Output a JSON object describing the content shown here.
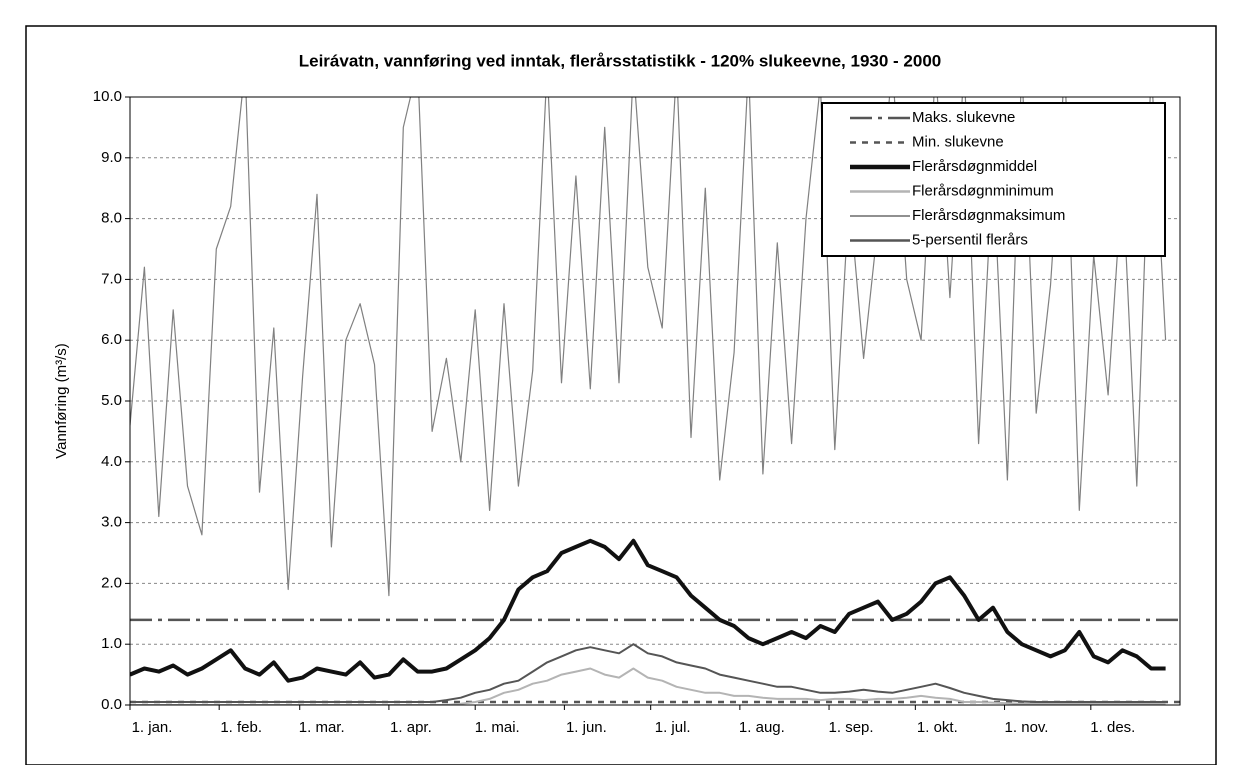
{
  "chart_data": {
    "type": "line",
    "title": "Leirávatn, vannføring ved inntak, flerårsstatistikk - 120% slukeevne, 1930 - 2000",
    "y_label": "Vannføring (m³/s)",
    "x": [
      1,
      6,
      11,
      16,
      21,
      26,
      31,
      36,
      41,
      46,
      51,
      56,
      61,
      66,
      71,
      76,
      81,
      86,
      91,
      96,
      101,
      106,
      111,
      116,
      121,
      126,
      131,
      136,
      141,
      146,
      151,
      156,
      161,
      166,
      171,
      176,
      181,
      186,
      191,
      196,
      201,
      206,
      211,
      216,
      221,
      226,
      231,
      236,
      241,
      246,
      251,
      256,
      261,
      266,
      271,
      276,
      281,
      286,
      291,
      296,
      301,
      306,
      311,
      316,
      321,
      326,
      331,
      336,
      341,
      346,
      351,
      356,
      361
    ],
    "xlim": [
      1,
      366
    ],
    "xticks": [
      {
        "value": 1,
        "label": "1. jan."
      },
      {
        "value": 32,
        "label": "1. feb."
      },
      {
        "value": 60,
        "label": "1. mar."
      },
      {
        "value": 91,
        "label": "1. apr."
      },
      {
        "value": 121,
        "label": "1. mai."
      },
      {
        "value": 152,
        "label": "1. jun."
      },
      {
        "value": 182,
        "label": "1. jul."
      },
      {
        "value": 213,
        "label": "1. aug."
      },
      {
        "value": 244,
        "label": "1. sep."
      },
      {
        "value": 274,
        "label": "1. okt."
      },
      {
        "value": 305,
        "label": "1. nov."
      },
      {
        "value": 335,
        "label": "1. des."
      }
    ],
    "ylim": [
      0,
      10
    ],
    "yticks": [
      {
        "value": 0,
        "label": "0.0"
      },
      {
        "value": 1,
        "label": "1.0"
      },
      {
        "value": 2,
        "label": "2.0"
      },
      {
        "value": 3,
        "label": "3.0"
      },
      {
        "value": 4,
        "label": "4.0"
      },
      {
        "value": 5,
        "label": "5.0"
      },
      {
        "value": 6,
        "label": "6.0"
      },
      {
        "value": 7,
        "label": "7.0"
      },
      {
        "value": 8,
        "label": "8.0"
      },
      {
        "value": 9,
        "label": "9.0"
      },
      {
        "value": 10,
        "label": "10.0"
      }
    ],
    "grid": true,
    "reference_lines": [
      {
        "name": "Maks. slukevne",
        "value": 1.4,
        "color": "#555555",
        "dash": "22 6 4 6"
      },
      {
        "name": "Min. slukevne",
        "value": 0.05,
        "color": "#555555",
        "dash": "6 6"
      }
    ],
    "series": [
      {
        "name": "Flerårsdøgnmiddel",
        "color": "#111111",
        "width": 4,
        "values": [
          0.5,
          0.6,
          0.55,
          0.65,
          0.5,
          0.6,
          0.75,
          0.9,
          0.6,
          0.5,
          0.7,
          0.4,
          0.45,
          0.6,
          0.55,
          0.5,
          0.7,
          0.45,
          0.5,
          0.75,
          0.55,
          0.55,
          0.6,
          0.75,
          0.9,
          1.1,
          1.4,
          1.9,
          2.1,
          2.2,
          2.5,
          2.6,
          2.7,
          2.6,
          2.4,
          2.7,
          2.3,
          2.2,
          2.1,
          1.8,
          1.6,
          1.4,
          1.3,
          1.1,
          1.0,
          1.1,
          1.2,
          1.1,
          1.3,
          1.2,
          1.5,
          1.6,
          1.7,
          1.4,
          1.5,
          1.7,
          2.0,
          2.1,
          1.8,
          1.4,
          1.6,
          1.2,
          1.0,
          0.9,
          0.8,
          0.9,
          1.2,
          0.8,
          0.7,
          0.9,
          0.8,
          0.6,
          0.6
        ]
      },
      {
        "name": "Flerårsdøgnminimum",
        "color": "#b4b4b4",
        "width": 2,
        "values": [
          0,
          0,
          0,
          0,
          0,
          0,
          0,
          0,
          0,
          0,
          0,
          0,
          0,
          0,
          0,
          0,
          0,
          0,
          0,
          0,
          0,
          0,
          0,
          0.02,
          0.05,
          0.1,
          0.2,
          0.25,
          0.35,
          0.4,
          0.5,
          0.55,
          0.6,
          0.5,
          0.45,
          0.6,
          0.45,
          0.4,
          0.3,
          0.25,
          0.2,
          0.2,
          0.15,
          0.15,
          0.12,
          0.1,
          0.1,
          0.1,
          0.08,
          0.1,
          0.1,
          0.08,
          0.1,
          0.1,
          0.12,
          0.15,
          0.12,
          0.1,
          0.05,
          0.05,
          0.04,
          0.03,
          0.02,
          0.02,
          0.02,
          0.02,
          0.02,
          0.02,
          0.02,
          0.02,
          0.02,
          0.02,
          0.02
        ]
      },
      {
        "name": "Flerårsdøgnmaksimum",
        "color": "#808080",
        "width": 1.2,
        "values": [
          4.6,
          7.2,
          3.1,
          6.5,
          3.6,
          2.8,
          7.5,
          8.2,
          10.5,
          3.5,
          6.2,
          1.9,
          5.4,
          8.4,
          2.6,
          6.0,
          6.6,
          5.6,
          1.8,
          9.5,
          10.5,
          4.5,
          5.7,
          4.0,
          6.5,
          3.2,
          6.6,
          3.6,
          5.5,
          10.5,
          5.3,
          8.7,
          5.2,
          9.5,
          5.3,
          10.5,
          7.2,
          6.2,
          10.5,
          4.4,
          8.5,
          3.7,
          5.8,
          10.5,
          3.8,
          7.6,
          4.3,
          8.0,
          10.2,
          4.2,
          8.4,
          5.7,
          7.9,
          10.5,
          7.0,
          6.0,
          10.5,
          6.7,
          10.5,
          4.3,
          8.9,
          3.7,
          10.5,
          4.8,
          6.9,
          10.5,
          3.2,
          7.4,
          5.1,
          8.7,
          3.6,
          10.5,
          6.0
        ]
      },
      {
        "name": "5-persentil flerårs",
        "color": "#555555",
        "width": 2,
        "values": [
          0.05,
          0.05,
          0.05,
          0.05,
          0.05,
          0.05,
          0.05,
          0.05,
          0.05,
          0.05,
          0.05,
          0.05,
          0.05,
          0.05,
          0.05,
          0.05,
          0.05,
          0.05,
          0.05,
          0.05,
          0.05,
          0.05,
          0.08,
          0.12,
          0.2,
          0.25,
          0.35,
          0.4,
          0.55,
          0.7,
          0.8,
          0.9,
          0.95,
          0.9,
          0.85,
          1.0,
          0.85,
          0.8,
          0.7,
          0.65,
          0.6,
          0.5,
          0.45,
          0.4,
          0.35,
          0.3,
          0.3,
          0.25,
          0.2,
          0.2,
          0.22,
          0.25,
          0.22,
          0.2,
          0.25,
          0.3,
          0.35,
          0.28,
          0.2,
          0.15,
          0.1,
          0.08,
          0.06,
          0.05,
          0.05,
          0.05,
          0.05,
          0.05,
          0.05,
          0.05,
          0.05,
          0.05,
          0.05
        ]
      }
    ]
  }
}
